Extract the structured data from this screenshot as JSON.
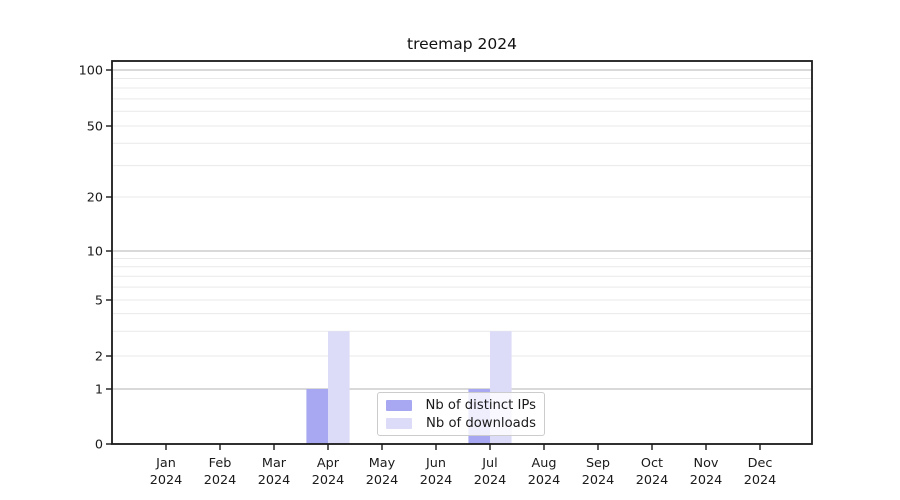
{
  "chart_data": {
    "type": "bar",
    "title": "treemap 2024",
    "categories": [
      "Jan",
      "Feb",
      "Mar",
      "Apr",
      "May",
      "Jun",
      "Jul",
      "Aug",
      "Sep",
      "Oct",
      "Nov",
      "Dec"
    ],
    "category_year": "2024",
    "series": [
      {
        "name": "Nb of distinct IPs",
        "color": "#a8a8f2",
        "values": [
          0,
          0,
          0,
          1,
          0,
          0,
          1,
          0,
          0,
          0,
          0,
          0
        ]
      },
      {
        "name": "Nb of downloads",
        "color": "#dcdcf8",
        "values": [
          0,
          0,
          0,
          3,
          0,
          0,
          3,
          0,
          0,
          0,
          0,
          0
        ]
      }
    ],
    "yaxis": {
      "scale": "log-like",
      "ticks": [
        0,
        1,
        2,
        5,
        10,
        20,
        50,
        100
      ],
      "top_value": 100
    },
    "grid": {
      "major_values": [
        1,
        10,
        100
      ],
      "minor_values": [
        2,
        3,
        4,
        5,
        6,
        7,
        8,
        9,
        20,
        30,
        40,
        50,
        60,
        70,
        80,
        90
      ],
      "major_color": "#b3b3b3",
      "minor_color": "#e9e9e9"
    },
    "legend_position": "lower center"
  }
}
